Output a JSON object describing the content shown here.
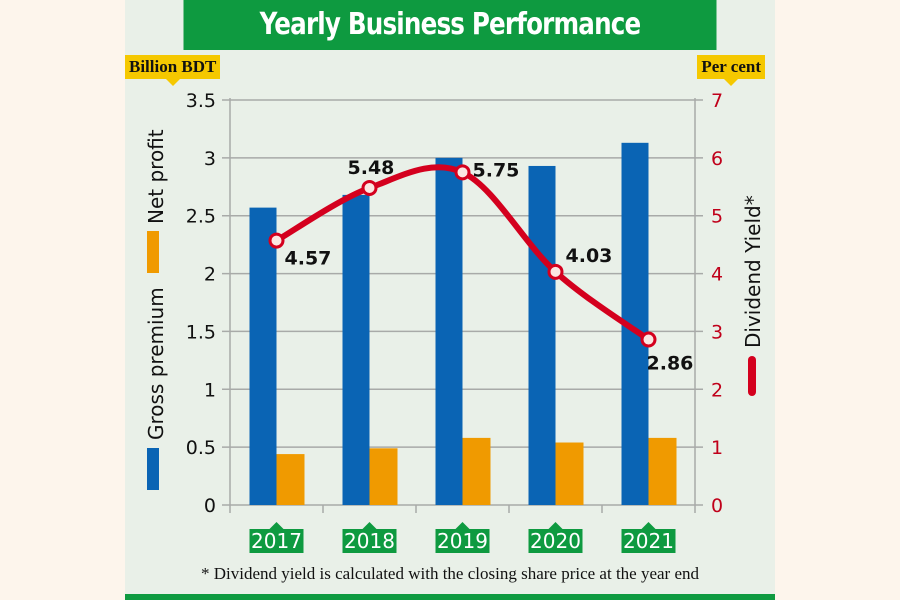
{
  "header": {
    "title": "Yearly Business Performance"
  },
  "units": {
    "left": "Billion BDT",
    "right": "Per cent"
  },
  "footnote": "* Dividend yield is calculated with the closing share price at the year end",
  "colors": {
    "gross_premium": "#0a64b4",
    "net_profit": "#f09a00",
    "dividend_yield": "#d4001e",
    "accent": "#0e9a40",
    "tag": "#f5c800"
  },
  "chart_data": {
    "type": "bar",
    "title": "Yearly Business Performance",
    "categories": [
      "2017",
      "2018",
      "2019",
      "2020",
      "2021"
    ],
    "series": [
      {
        "name": "Gross premium",
        "axis": "left",
        "type": "bar",
        "values": [
          2.57,
          2.68,
          3.0,
          2.93,
          3.13
        ]
      },
      {
        "name": "Net profit",
        "axis": "left",
        "type": "bar",
        "values": [
          0.44,
          0.49,
          0.58,
          0.54,
          0.58
        ]
      },
      {
        "name": "Dividend Yield*",
        "axis": "right",
        "type": "line",
        "values": [
          4.57,
          5.48,
          5.75,
          4.03,
          2.86
        ],
        "labels": [
          "4.57",
          "5.48",
          "5.75",
          "4.03",
          "2.86"
        ]
      }
    ],
    "ylabel_left": "Billion BDT",
    "ylabel_right": "Per cent",
    "ylim_left": [
      0,
      3.5
    ],
    "ylim_right": [
      0,
      7
    ],
    "yticks_left": [
      "0",
      "0.5",
      "1",
      "1.5",
      "2",
      "2.5",
      "3",
      "3.5"
    ],
    "yticks_right": [
      "0",
      "1",
      "2",
      "3",
      "4",
      "5",
      "6",
      "7"
    ],
    "grid": true,
    "legend": [
      "Gross premium",
      "Net profit",
      "Dividend Yield*"
    ],
    "legend_placement": "left-and-right vertical"
  }
}
